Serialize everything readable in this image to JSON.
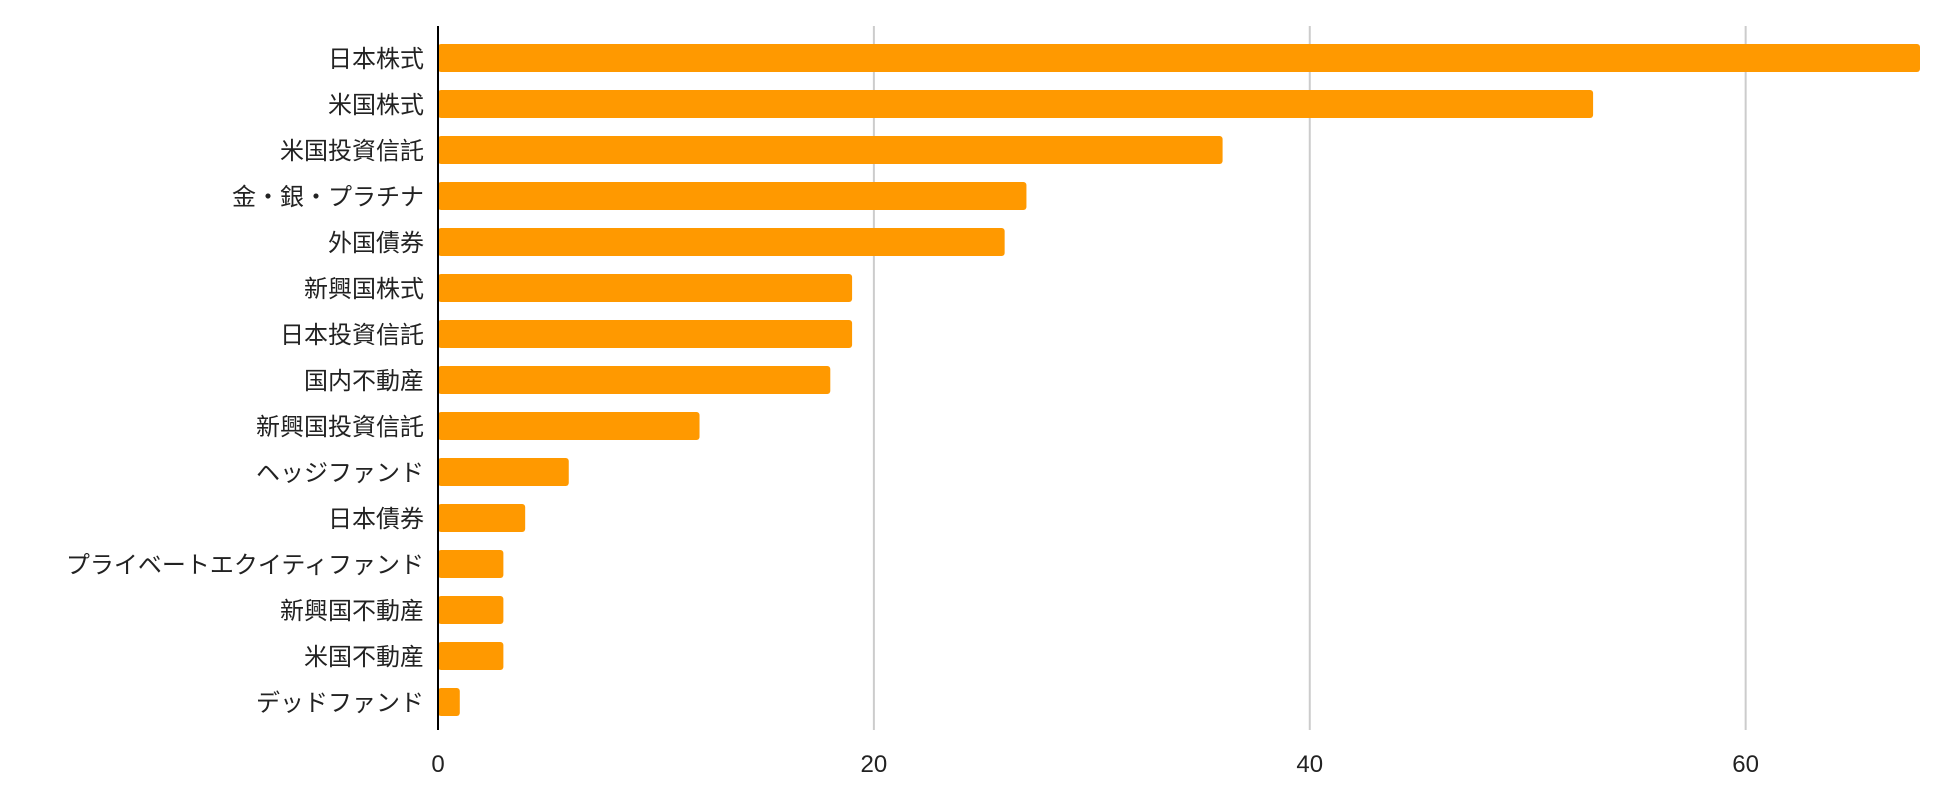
{
  "chart_data": {
    "type": "bar",
    "orientation": "horizontal",
    "categories": [
      "日本株式",
      "米国株式",
      "米国投資信託",
      "金・銀・プラチナ",
      "外国債券",
      "新興国株式",
      "日本投資信託",
      "国内不動産",
      "新興国投資信託",
      "ヘッジファンド",
      "日本債券",
      "プライベートエクイティファンド",
      "新興国不動産",
      "米国不動産",
      "デッドファンド"
    ],
    "values": [
      68,
      53,
      36,
      27,
      26,
      19,
      19,
      18,
      12,
      6,
      4,
      3,
      3,
      3,
      1
    ],
    "xlim": [
      0,
      68
    ],
    "xticks": [
      0,
      20,
      40,
      60
    ],
    "xtick_labels": [
      "0",
      "20",
      "40",
      "60"
    ],
    "grid": true,
    "bar_color": "#FF9900",
    "grid_color": "#CCCCCC",
    "axis_color": "#000000"
  }
}
